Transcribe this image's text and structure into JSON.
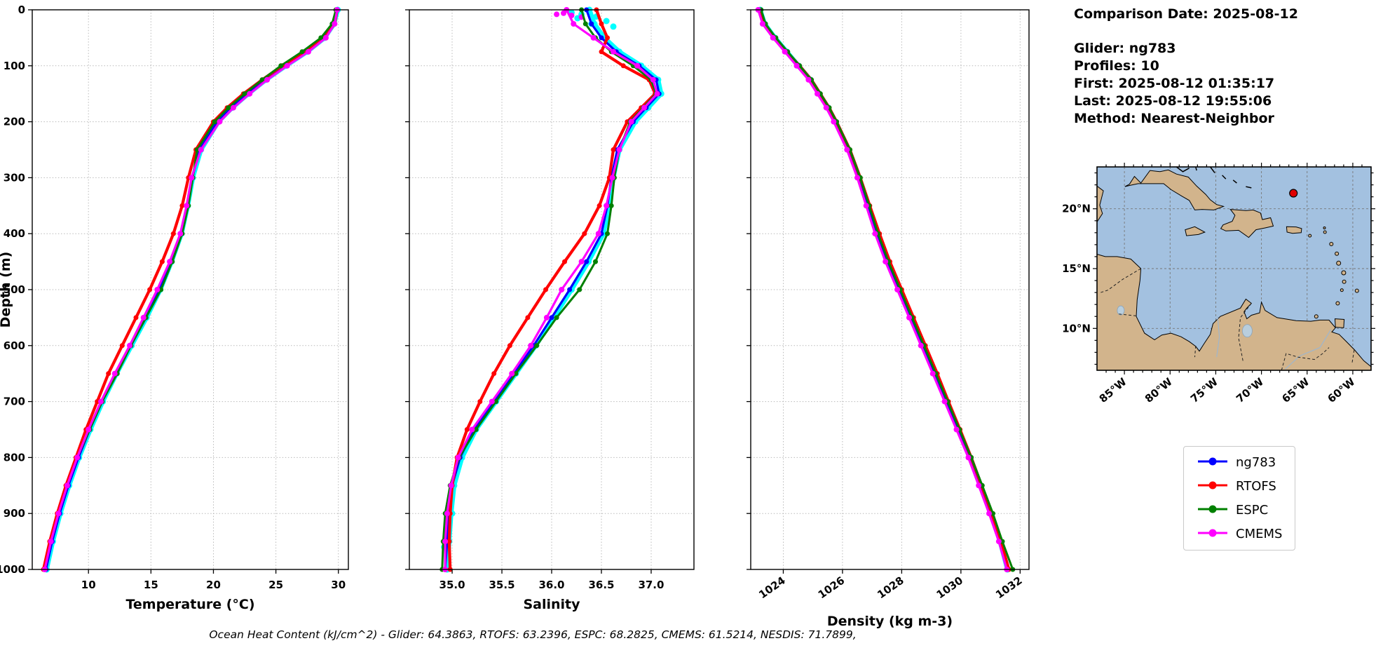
{
  "info_panel": {
    "comparison_date": "Comparison Date: 2025-08-12",
    "glider": "Glider: ng783",
    "profiles": "Profiles: 10",
    "first": "First: 2025-08-12 01:35:17",
    "last": "Last: 2025-08-12 19:55:06",
    "method": "Method: Nearest-Neighbor"
  },
  "footer": "Ocean Heat Content (kJ/cm^2) - Glider: 64.3863,  RTOFS: 63.2396,  ESPC: 68.2825,  CMEMS: 61.5214,  NESDIS: 71.7899,",
  "legend": {
    "items": [
      {
        "label": "ng783",
        "color": "#0000ff"
      },
      {
        "label": "RTOFS",
        "color": "#ff0000"
      },
      {
        "label": "ESPC",
        "color": "#008000"
      },
      {
        "label": "CMEMS",
        "color": "#ff00ff"
      }
    ]
  },
  "map": {
    "lon_ticks": [
      {
        "label": "85°W",
        "lon": -85
      },
      {
        "label": "80°W",
        "lon": -80
      },
      {
        "label": "75°W",
        "lon": -75
      },
      {
        "label": "70°W",
        "lon": -70
      },
      {
        "label": "65°W",
        "lon": -65
      },
      {
        "label": "60°W",
        "lon": -60
      }
    ],
    "lat_ticks": [
      {
        "label": "20°N",
        "lat": 20
      },
      {
        "label": "15°N",
        "lat": 15
      },
      {
        "label": "10°N",
        "lat": 10
      }
    ],
    "marker": {
      "lon": -66.5,
      "lat": 21.3,
      "color": "#e00000"
    },
    "ocean_color": "#a3c1e0",
    "land_color": "#d2b48c"
  },
  "chart_data": [
    {
      "id": "temperature",
      "type": "line",
      "xlabel": "Temperature (°C)",
      "ylabel": "Depth (m)",
      "xlim": [
        5.5,
        30.8
      ],
      "xticks": [
        10,
        15,
        20,
        25,
        30
      ],
      "xtick_labels": [
        "10",
        "15",
        "20",
        "25",
        "30"
      ],
      "ylim": [
        0,
        1000
      ],
      "yticks": [
        0,
        100,
        200,
        300,
        400,
        500,
        600,
        700,
        800,
        900,
        1000
      ],
      "show_ytick_labels": true,
      "rotate_xtick_labels": false,
      "grid": true,
      "depths": [
        0,
        25,
        50,
        75,
        100,
        125,
        150,
        175,
        200,
        250,
        300,
        350,
        400,
        450,
        500,
        550,
        600,
        650,
        700,
        750,
        800,
        850,
        900,
        950,
        1000
      ],
      "series": [
        {
          "name": "glider-obs",
          "color": "#00ffff",
          "width": 6.5,
          "marker": 4.5,
          "values": [
            29.95,
            29.65,
            28.9,
            27.5,
            25.8,
            24.2,
            22.8,
            21.5,
            20.4,
            19.0,
            18.35,
            17.95,
            17.45,
            16.65,
            15.75,
            14.65,
            13.45,
            12.25,
            11.15,
            10.15,
            9.25,
            8.45,
            7.75,
            7.15,
            6.65
          ]
        },
        {
          "name": "ng783",
          "color": "#0000ff",
          "width": 3.2,
          "marker": 3.5,
          "values": [
            29.9,
            29.6,
            28.8,
            27.4,
            25.7,
            24.1,
            22.7,
            21.4,
            20.3,
            18.9,
            18.3,
            17.9,
            17.4,
            16.6,
            15.7,
            14.6,
            13.4,
            12.2,
            11.1,
            10.1,
            9.2,
            8.4,
            7.7,
            7.1,
            6.6
          ]
        },
        {
          "name": "RTOFS",
          "color": "#ff0000",
          "width": 4.2,
          "marker": 3.5,
          "values": [
            29.9,
            29.7,
            28.9,
            27.3,
            25.5,
            23.9,
            22.4,
            21.1,
            20.0,
            18.6,
            18.0,
            17.5,
            16.8,
            15.9,
            14.9,
            13.8,
            12.7,
            11.6,
            10.7,
            9.8,
            9.0,
            8.2,
            7.5,
            6.9,
            6.4
          ]
        },
        {
          "name": "ESPC",
          "color": "#008000",
          "width": 3.0,
          "marker": 3.5,
          "values": [
            29.8,
            29.5,
            28.6,
            27.1,
            25.4,
            23.9,
            22.5,
            21.2,
            20.1,
            18.7,
            18.35,
            18.0,
            17.5,
            16.7,
            15.8,
            14.6,
            13.4,
            12.3,
            11.1,
            10.1,
            9.1,
            8.3,
            7.6,
            7.0,
            6.5
          ]
        },
        {
          "name": "CMEMS",
          "color": "#ff00ff",
          "width": 3.2,
          "marker": 4.0,
          "values": [
            29.9,
            29.7,
            29.0,
            27.6,
            25.9,
            24.3,
            22.9,
            21.6,
            20.5,
            19.0,
            18.25,
            17.85,
            17.35,
            16.5,
            15.5,
            14.4,
            13.3,
            12.1,
            11.0,
            10.0,
            9.1,
            8.3,
            7.6,
            7.0,
            6.5
          ]
        }
      ]
    },
    {
      "id": "salinity",
      "type": "line",
      "xlabel": "Salinity",
      "ylabel": null,
      "xlim": [
        34.57,
        37.43
      ],
      "xticks": [
        35.0,
        35.5,
        36.0,
        36.5,
        37.0
      ],
      "xtick_labels": [
        "35.0",
        "35.5",
        "36.0",
        "36.5",
        "37.0"
      ],
      "ylim": [
        0,
        1000
      ],
      "yticks": [
        0,
        100,
        200,
        300,
        400,
        500,
        600,
        700,
        800,
        900,
        1000
      ],
      "show_ytick_labels": false,
      "rotate_xtick_labels": false,
      "grid": true,
      "depths": [
        0,
        25,
        50,
        75,
        100,
        125,
        150,
        175,
        200,
        250,
        300,
        350,
        400,
        450,
        500,
        550,
        600,
        650,
        700,
        750,
        800,
        850,
        900,
        950,
        1000
      ],
      "extra_scatter": [
        {
          "name": "glider-surface-spread",
          "color": "#00ffff",
          "r": 4.5,
          "points": [
            [
              36.2,
              5
            ],
            [
              36.3,
              8
            ],
            [
              36.45,
              12
            ],
            [
              36.55,
              20
            ],
            [
              36.62,
              30
            ],
            [
              36.5,
              45
            ],
            [
              36.4,
              25
            ],
            [
              36.26,
              15
            ],
            [
              35.0,
              900
            ],
            [
              34.95,
              930
            ],
            [
              34.92,
              960
            ]
          ]
        },
        {
          "name": "cmems-surface-spread",
          "color": "#ff00ff",
          "r": 4.0,
          "points": [
            [
              36.12,
              6
            ],
            [
              36.2,
              10
            ],
            [
              36.3,
              13
            ],
            [
              36.05,
              8
            ]
          ]
        }
      ],
      "series": [
        {
          "name": "glider-obs",
          "color": "#00ffff",
          "width": 6.5,
          "marker": 4.5,
          "values": [
            36.38,
            36.43,
            36.53,
            36.68,
            36.9,
            37.07,
            37.1,
            36.97,
            36.84,
            36.68,
            36.62,
            36.58,
            36.52,
            36.37,
            36.2,
            36.02,
            35.84,
            35.64,
            35.44,
            35.24,
            35.1,
            35.02,
            34.99,
            34.97,
            34.95
          ]
        },
        {
          "name": "ng783",
          "color": "#0000ff",
          "width": 3.2,
          "marker": 3.5,
          "values": [
            36.35,
            36.4,
            36.5,
            36.65,
            36.88,
            37.05,
            37.08,
            36.95,
            36.82,
            36.66,
            36.6,
            36.56,
            36.5,
            36.35,
            36.18,
            36.0,
            35.82,
            35.62,
            35.42,
            35.22,
            35.08,
            35.0,
            34.97,
            34.95,
            34.93
          ]
        },
        {
          "name": "RTOFS",
          "color": "#ff0000",
          "width": 4.2,
          "marker": 3.5,
          "values": [
            36.45,
            36.5,
            36.56,
            36.5,
            36.72,
            36.98,
            37.04,
            36.9,
            36.76,
            36.62,
            36.58,
            36.48,
            36.33,
            36.13,
            35.94,
            35.76,
            35.58,
            35.42,
            35.28,
            35.15,
            35.05,
            35.0,
            34.98,
            34.97,
            34.98
          ]
        },
        {
          "name": "ESPC",
          "color": "#008000",
          "width": 3.0,
          "marker": 3.5,
          "values": [
            36.3,
            36.34,
            36.44,
            36.6,
            36.82,
            37.0,
            37.05,
            36.92,
            36.79,
            36.68,
            36.63,
            36.6,
            36.56,
            36.44,
            36.28,
            36.05,
            35.85,
            35.64,
            35.44,
            35.24,
            35.07,
            34.98,
            34.93,
            34.91,
            34.9
          ]
        },
        {
          "name": "CMEMS",
          "color": "#ff00ff",
          "width": 3.2,
          "marker": 4.0,
          "values": [
            36.15,
            36.22,
            36.42,
            36.62,
            36.86,
            37.02,
            37.06,
            36.93,
            36.8,
            36.68,
            36.61,
            36.55,
            36.47,
            36.3,
            36.1,
            35.95,
            35.79,
            35.6,
            35.4,
            35.2,
            35.06,
            34.99,
            34.95,
            34.93,
            34.93
          ]
        }
      ]
    },
    {
      "id": "density",
      "type": "line",
      "xlabel": "Density (kg m-3)",
      "ylabel": null,
      "xlim": [
        1022.9,
        1032.3
      ],
      "xticks": [
        1024,
        1026,
        1028,
        1030,
        1032
      ],
      "xtick_labels": [
        "1024",
        "1026",
        "1028",
        "1030",
        "1032"
      ],
      "ylim": [
        0,
        1000
      ],
      "yticks": [
        0,
        100,
        200,
        300,
        400,
        500,
        600,
        700,
        800,
        900,
        1000
      ],
      "show_ytick_labels": false,
      "rotate_xtick_labels": true,
      "grid": true,
      "depths": [
        0,
        25,
        50,
        75,
        100,
        125,
        150,
        175,
        200,
        250,
        300,
        350,
        400,
        450,
        500,
        550,
        600,
        650,
        700,
        750,
        800,
        850,
        900,
        950,
        1000
      ],
      "series": [
        {
          "name": "glider-obs",
          "color": "#00ffff",
          "width": 6.5,
          "marker": 4.5,
          "values": [
            1023.22,
            1023.37,
            1023.72,
            1024.12,
            1024.52,
            1024.92,
            1025.22,
            1025.52,
            1025.77,
            1026.22,
            1026.57,
            1026.87,
            1027.17,
            1027.52,
            1027.92,
            1028.32,
            1028.72,
            1029.12,
            1029.52,
            1029.92,
            1030.32,
            1030.67,
            1031.02,
            1031.32,
            1031.57
          ]
        },
        {
          "name": "ng783",
          "color": "#0000ff",
          "width": 3.2,
          "marker": 3.5,
          "values": [
            1023.2,
            1023.35,
            1023.7,
            1024.1,
            1024.5,
            1024.9,
            1025.2,
            1025.5,
            1025.75,
            1026.2,
            1026.55,
            1026.85,
            1027.15,
            1027.5,
            1027.9,
            1028.3,
            1028.7,
            1029.1,
            1029.5,
            1029.9,
            1030.3,
            1030.65,
            1031.0,
            1031.3,
            1031.55
          ]
        },
        {
          "name": "RTOFS",
          "color": "#ff0000",
          "width": 4.2,
          "marker": 3.5,
          "values": [
            1023.2,
            1023.33,
            1023.68,
            1024.12,
            1024.55,
            1024.95,
            1025.25,
            1025.55,
            1025.8,
            1026.25,
            1026.6,
            1026.92,
            1027.25,
            1027.6,
            1028.0,
            1028.4,
            1028.8,
            1029.2,
            1029.58,
            1029.97,
            1030.35,
            1030.7,
            1031.05,
            1031.35,
            1031.62
          ]
        },
        {
          "name": "ESPC",
          "color": "#008000",
          "width": 3.0,
          "marker": 3.5,
          "values": [
            1023.25,
            1023.4,
            1023.75,
            1024.15,
            1024.55,
            1024.95,
            1025.25,
            1025.55,
            1025.8,
            1026.25,
            1026.6,
            1026.9,
            1027.2,
            1027.55,
            1027.95,
            1028.35,
            1028.75,
            1029.15,
            1029.55,
            1029.95,
            1030.35,
            1030.72,
            1031.08,
            1031.4,
            1031.75
          ]
        },
        {
          "name": "CMEMS",
          "color": "#ff00ff",
          "width": 3.2,
          "marker": 4.0,
          "values": [
            1023.15,
            1023.3,
            1023.65,
            1024.05,
            1024.45,
            1024.85,
            1025.15,
            1025.45,
            1025.7,
            1026.15,
            1026.5,
            1026.8,
            1027.1,
            1027.45,
            1027.85,
            1028.25,
            1028.65,
            1029.05,
            1029.45,
            1029.85,
            1030.25,
            1030.6,
            1030.95,
            1031.28,
            1031.55
          ]
        }
      ]
    }
  ]
}
